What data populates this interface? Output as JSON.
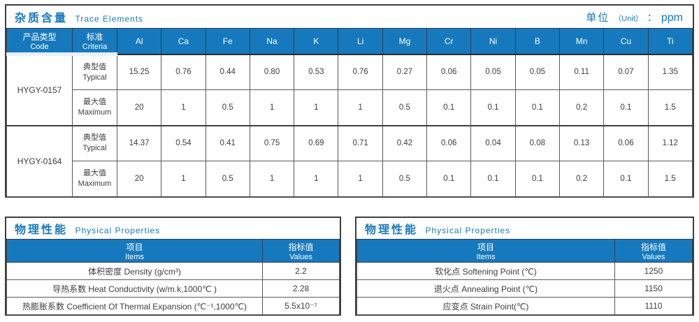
{
  "colors": {
    "accent": "#1779bd",
    "header_bg": "#1779bd",
    "border_dark": "#3e3e3e",
    "text": "#3d3d3d"
  },
  "trace_table": {
    "title_zh": "杂质含量",
    "title_en": "Trace Elements",
    "unit_zh": "单位",
    "unit_en": "（Unit）",
    "unit_sep": "：",
    "unit_value": "ppm",
    "col_product_zh": "产品类型",
    "col_product_en": "Code",
    "col_criteria_zh": "标准",
    "col_criteria_en": "Criteria",
    "criteria_typical_zh": "典型值",
    "criteria_typical_en": "Typical",
    "criteria_maximum_zh": "最大值",
    "criteria_maximum_en": "Maximum",
    "elements": [
      "Al",
      "Ca",
      "Fe",
      "Na",
      "K",
      "Li",
      "Mg",
      "Cr",
      "Ni",
      "B",
      "Mn",
      "Cu",
      "Ti"
    ],
    "rows": [
      {
        "code": "HYGY-0157",
        "typical": [
          "15.25",
          "0.76",
          "0.44",
          "0.80",
          "0.53",
          "0.76",
          "0.27",
          "0.06",
          "0.05",
          "0.05",
          "0.11",
          "0.07",
          "1.35"
        ],
        "maximum": [
          "20",
          "1",
          "0.5",
          "1",
          "1",
          "1",
          "0.5",
          "0.1",
          "0.1",
          "0.1",
          "0.2",
          "0.1",
          "1.5"
        ]
      },
      {
        "code": "HYGY-0164",
        "typical": [
          "14.37",
          "0.54",
          "0.41",
          "0.75",
          "0.69",
          "0.71",
          "0.42",
          "0.06",
          "0.04",
          "0.08",
          "0.13",
          "0.06",
          "1.12"
        ],
        "maximum": [
          "20",
          "1",
          "0.5",
          "1",
          "1",
          "1",
          "0.5",
          "0.1",
          "0.1",
          "0.1",
          "0.2",
          "0.1",
          "1.5"
        ]
      }
    ]
  },
  "physical_left": {
    "title_zh": "物理性能",
    "title_en": "Physical Properties",
    "col_items_zh": "项目",
    "col_items_en": "Items",
    "col_values_zh": "指标值",
    "col_values_en": "Values",
    "rows": [
      {
        "item": "体积密度 Density (g/cm³)",
        "value": "2.2"
      },
      {
        "item": "导热系数 Heat Conductivity (w/m.k,1000℃ )",
        "value": "2.28"
      },
      {
        "item": "热膨胀系数 Coefficient Of Thermal Expansion (℃⁻¹,1000℃)",
        "value": "5.5x10⁻⁷"
      }
    ]
  },
  "physical_right": {
    "title_zh": "物理性能",
    "title_en": "Physical Properties",
    "col_items_zh": "项目",
    "col_items_en": "Items",
    "col_values_zh": "指标值",
    "col_values_en": "Values",
    "rows": [
      {
        "item": "软化点 Softening Point (℃)",
        "value": "1250"
      },
      {
        "item": "退火点 Annealing Point (℃)",
        "value": "1150"
      },
      {
        "item": "应变点 Strain Point(℃)",
        "value": "1110"
      }
    ]
  }
}
